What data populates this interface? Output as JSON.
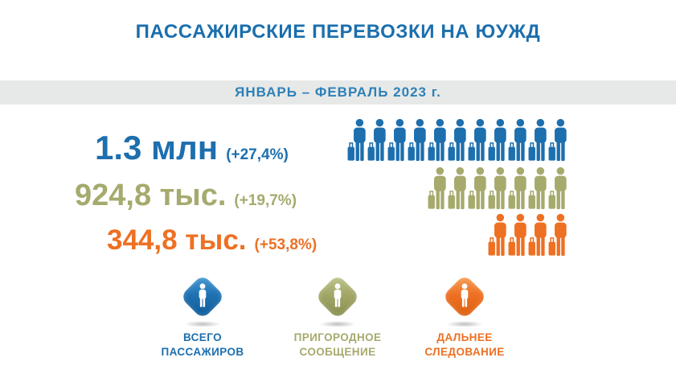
{
  "title": "ПАССАЖИРСКИЕ ПЕРЕВОЗКИ НА ЮУЖД",
  "period_banner": "ЯНВАРЬ – ФЕВРАЛЬ 2023 г.",
  "colors": {
    "title_blue": "#1b6fad",
    "banner_text_blue": "#2e80b7",
    "banner_gray": "#e7e9e8",
    "blue": "#1d6fae",
    "olive": "#a6aa6d",
    "orange": "#ee7023"
  },
  "stats": [
    {
      "id": "total",
      "value": "1.3 млн",
      "change": "(+27,4%)",
      "icon_count": 11,
      "color": "#1d6fae"
    },
    {
      "id": "suburban",
      "value": "924,8 тыс.",
      "change": "(+19,7%)",
      "icon_count": 7,
      "color": "#a6aa6d"
    },
    {
      "id": "long-distance",
      "value": "344,8 тыс.",
      "change": "(+53,8%)",
      "icon_count": 4,
      "color": "#ee7023"
    }
  ],
  "legend": [
    {
      "id": "total",
      "label_line1": "ВСЕГО",
      "label_line2": "ПАССАЖИРОВ",
      "color": "#1d6fae"
    },
    {
      "id": "suburban",
      "label_line1": "ПРИГОРОДНОЕ",
      "label_line2": "СООБЩЕНИЕ",
      "color": "#a6aa6d"
    },
    {
      "id": "long-distance",
      "label_line1": "ДАЛЬНЕЕ",
      "label_line2": "СЛЕДОВАНИЕ",
      "color": "#ee7023"
    }
  ],
  "chart_data": {
    "type": "bar",
    "subtype": "pictogram",
    "title": "ПАССАЖИРСКИЕ ПЕРЕВОЗКИ НА ЮУЖД",
    "subtitle": "ЯНВАРЬ – ФЕВРАЛЬ 2023 г.",
    "categories": [
      "ВСЕГО ПАССАЖИРОВ",
      "ПРИГОРОДНОЕ СООБЩЕНИЕ",
      "ДАЛЬНЕЕ СЛЕДОВАНИЕ"
    ],
    "values": [
      1300000,
      924800,
      344800
    ],
    "value_labels": [
      "1.3 млн",
      "924,8 тыс.",
      "344,8 тыс."
    ],
    "change_labels": [
      "(+27,4%)",
      "(+19,7%)",
      "(+53,8%)"
    ],
    "change_pct": [
      27.4,
      19.7,
      53.8
    ],
    "pictogram_counts": [
      11,
      7,
      4
    ],
    "colors": [
      "#1d6fae",
      "#a6aa6d",
      "#ee7023"
    ],
    "legend_position": "bottom",
    "grid": false
  }
}
